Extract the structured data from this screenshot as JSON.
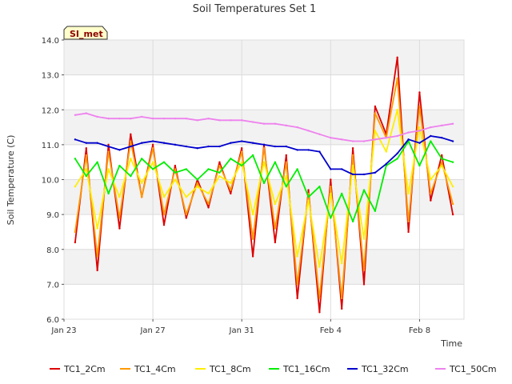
{
  "chart_data": {
    "type": "line",
    "title": "Soil Temperatures Set 1",
    "xlabel": "Time",
    "ylabel": "Soil Temperature (C)",
    "ylim": [
      6.0,
      14.0
    ],
    "xlim": [
      "2023-01-23",
      "2023-02-10"
    ],
    "yticks": [
      "6.0",
      "7.0",
      "8.0",
      "9.0",
      "10.0",
      "11.0",
      "12.0",
      "13.0",
      "14.0"
    ],
    "xticks": [
      {
        "label": "Jan 23",
        "date": "2023-01-23"
      },
      {
        "label": "Jan 27",
        "date": "2023-01-27"
      },
      {
        "label": "Jan 31",
        "date": "2023-01-31"
      },
      {
        "label": "Feb 4",
        "date": "2023-02-04"
      },
      {
        "label": "Feb 8",
        "date": "2023-02-08"
      }
    ],
    "badge": "SI_met",
    "background": "alternating grey bands",
    "grid": true,
    "legend_position": "bottom",
    "x_dates": [
      "2023-01-23 12:00",
      "2023-01-24",
      "2023-01-24 12:00",
      "2023-01-25",
      "2023-01-25 12:00",
      "2023-01-26",
      "2023-01-26 12:00",
      "2023-01-27",
      "2023-01-27 12:00",
      "2023-01-28",
      "2023-01-28 12:00",
      "2023-01-29",
      "2023-01-29 12:00",
      "2023-01-30",
      "2023-01-30 12:00",
      "2023-01-31",
      "2023-01-31 12:00",
      "2023-02-01",
      "2023-02-01 12:00",
      "2023-02-02",
      "2023-02-02 12:00",
      "2023-02-03",
      "2023-02-03 12:00",
      "2023-02-04",
      "2023-02-04 12:00",
      "2023-02-05",
      "2023-02-05 12:00",
      "2023-02-06",
      "2023-02-06 12:00",
      "2023-02-07",
      "2023-02-07 12:00",
      "2023-02-08",
      "2023-02-08 12:00",
      "2023-02-09",
      "2023-02-09 12:00"
    ],
    "series": [
      {
        "name": "TC1_2Cm",
        "color": "#dd0000",
        "values": [
          8.2,
          10.9,
          7.4,
          11.0,
          8.6,
          11.3,
          9.5,
          11.0,
          8.7,
          10.4,
          8.9,
          10.0,
          9.2,
          10.5,
          9.6,
          10.9,
          7.8,
          11.0,
          8.2,
          10.7,
          6.6,
          9.7,
          6.2,
          10.0,
          6.3,
          10.9,
          7.0,
          12.1,
          11.3,
          13.5,
          8.5,
          12.5,
          9.4,
          10.7,
          9.0
        ]
      },
      {
        "name": "TC1_4Cm",
        "color": "#ff9900",
        "values": [
          8.5,
          10.7,
          7.8,
          10.8,
          8.9,
          11.1,
          9.5,
          10.9,
          9.0,
          10.3,
          9.0,
          9.9,
          9.3,
          10.4,
          9.7,
          10.8,
          8.3,
          10.9,
          8.6,
          10.5,
          7.0,
          9.6,
          6.6,
          9.8,
          6.6,
          10.7,
          7.4,
          11.9,
          11.2,
          12.9,
          8.8,
          12.1,
          9.6,
          10.5,
          9.3
        ]
      },
      {
        "name": "TC1_8Cm",
        "color": "#ffee00",
        "values": [
          9.8,
          10.3,
          8.6,
          10.3,
          9.5,
          10.6,
          9.9,
          10.5,
          9.5,
          10.0,
          9.5,
          9.8,
          9.6,
          10.1,
          9.9,
          10.5,
          9.0,
          10.5,
          9.3,
          10.1,
          7.8,
          9.4,
          7.5,
          9.6,
          7.6,
          10.4,
          8.3,
          11.4,
          10.8,
          12.0,
          9.6,
          11.5,
          10.0,
          10.4,
          9.8
        ]
      },
      {
        "name": "TC1_16Cm",
        "color": "#00ee00",
        "values": [
          10.6,
          10.1,
          10.5,
          9.6,
          10.4,
          10.1,
          10.6,
          10.3,
          10.5,
          10.2,
          10.3,
          10.0,
          10.3,
          10.2,
          10.6,
          10.4,
          10.7,
          9.9,
          10.5,
          9.8,
          10.3,
          9.5,
          9.8,
          8.9,
          9.6,
          8.8,
          9.7,
          9.1,
          10.4,
          10.6,
          11.1,
          10.4,
          11.1,
          10.6,
          10.5
        ]
      },
      {
        "name": "TC1_32Cm",
        "color": "#0000cc",
        "values": [
          11.15,
          11.05,
          11.05,
          10.95,
          10.85,
          10.95,
          11.05,
          11.1,
          11.05,
          11.0,
          10.95,
          10.9,
          10.95,
          10.95,
          11.05,
          11.1,
          11.05,
          11.0,
          10.95,
          10.95,
          10.85,
          10.85,
          10.8,
          10.3,
          10.3,
          10.15,
          10.15,
          10.2,
          10.45,
          10.75,
          11.15,
          11.05,
          11.25,
          11.2,
          11.1
        ]
      },
      {
        "name": "TC1_50Cm",
        "color": "#ee82ee",
        "values": [
          11.85,
          11.9,
          11.8,
          11.75,
          11.75,
          11.75,
          11.8,
          11.75,
          11.75,
          11.75,
          11.75,
          11.7,
          11.75,
          11.7,
          11.7,
          11.7,
          11.65,
          11.6,
          11.6,
          11.55,
          11.5,
          11.4,
          11.3,
          11.2,
          11.15,
          11.1,
          11.1,
          11.15,
          11.2,
          11.25,
          11.35,
          11.4,
          11.5,
          11.55,
          11.6
        ]
      }
    ]
  }
}
